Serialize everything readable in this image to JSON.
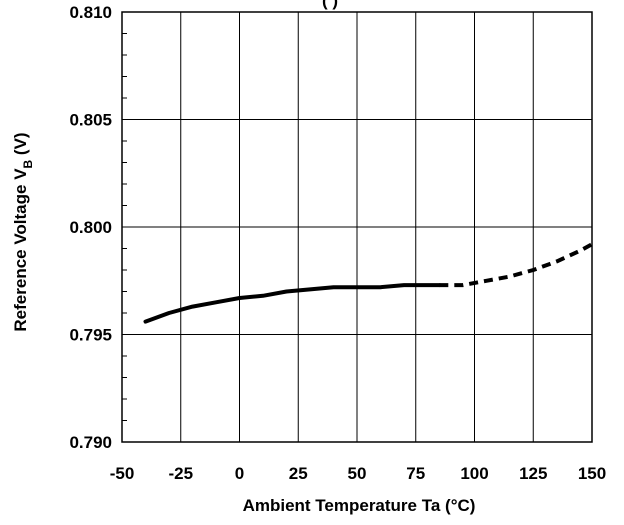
{
  "chart_data": {
    "type": "line",
    "title": "",
    "title_partial": "(          )",
    "xlabel": "Ambient Temperature  Ta  (°C)",
    "ylabel_main": "Reference Voltage  V",
    "ylabel_sub": "B",
    "ylabel_unit": " (V)",
    "xlim": [
      -50,
      150
    ],
    "ylim": [
      0.79,
      0.81
    ],
    "x_ticks": [
      -50,
      -25,
      0,
      25,
      50,
      75,
      100,
      125,
      150
    ],
    "x_tick_labels": [
      "-50",
      "-25",
      "0",
      "25",
      "50",
      "75",
      "100",
      "125",
      "150"
    ],
    "y_ticks": [
      0.79,
      0.795,
      0.8,
      0.805,
      0.81
    ],
    "y_tick_labels": [
      "0.790",
      "0.795",
      "0.800",
      "0.805",
      "0.810"
    ],
    "grid": true,
    "series": [
      {
        "style": "solid",
        "x": [
          -40,
          -30,
          -20,
          -10,
          0,
          10,
          20,
          30,
          40,
          50,
          60,
          70,
          80,
          85
        ],
        "y": [
          0.7956,
          0.796,
          0.7963,
          0.7965,
          0.7967,
          0.7968,
          0.797,
          0.7971,
          0.7972,
          0.7972,
          0.7972,
          0.7973,
          0.7973,
          0.7973
        ]
      },
      {
        "style": "dashed",
        "x": [
          85,
          95,
          105,
          115,
          125,
          135,
          145,
          150
        ],
        "y": [
          0.7973,
          0.7973,
          0.7975,
          0.7977,
          0.798,
          0.7984,
          0.7989,
          0.7992
        ]
      }
    ]
  }
}
